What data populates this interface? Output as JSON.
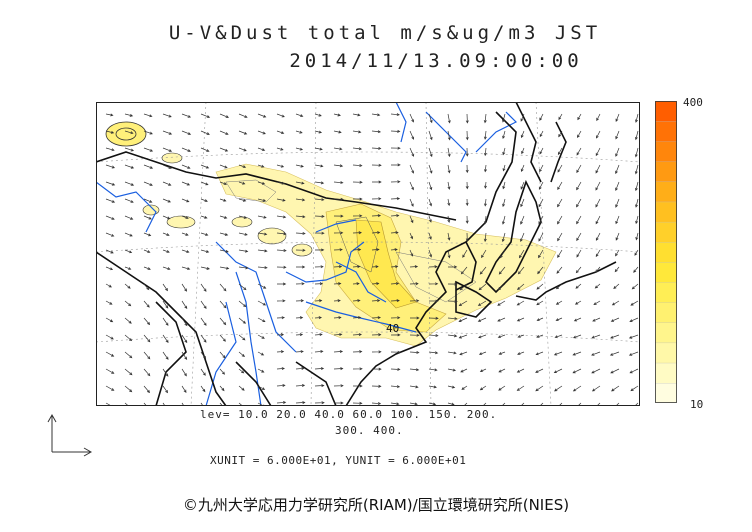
{
  "title": {
    "line1": "U-V&Dust total m/s&ug/m3 JST",
    "line2": "2014/11/13.09:00:00"
  },
  "colorbar": {
    "max_label": "400",
    "min_label": "10",
    "colors": [
      "#fffde0",
      "#fffbc4",
      "#fff8a8",
      "#fff58c",
      "#fff170",
      "#ffee55",
      "#ffe83a",
      "#ffdf30",
      "#ffd02a",
      "#ffc020",
      "#ffae18",
      "#ff9a12",
      "#ff860c",
      "#ff7206",
      "#ff5e00"
    ]
  },
  "contour_legend": {
    "line1": "lev= 10.0 20.0 40.0 60.0 100. 150. 200.",
    "line2": "300. 400."
  },
  "map": {
    "contour_label": "40",
    "dust_color": "#fff6b0",
    "dust_core_color": "#fff07a",
    "coastline_color": "#111111",
    "river_color": "#1a5fe0"
  },
  "units": "XUNIT = 6.000E+01, YUNIT = 6.000E+01",
  "copyright": "©九州大学応用力学研究所(RIAM)/国立環境研究所(NIES)"
}
